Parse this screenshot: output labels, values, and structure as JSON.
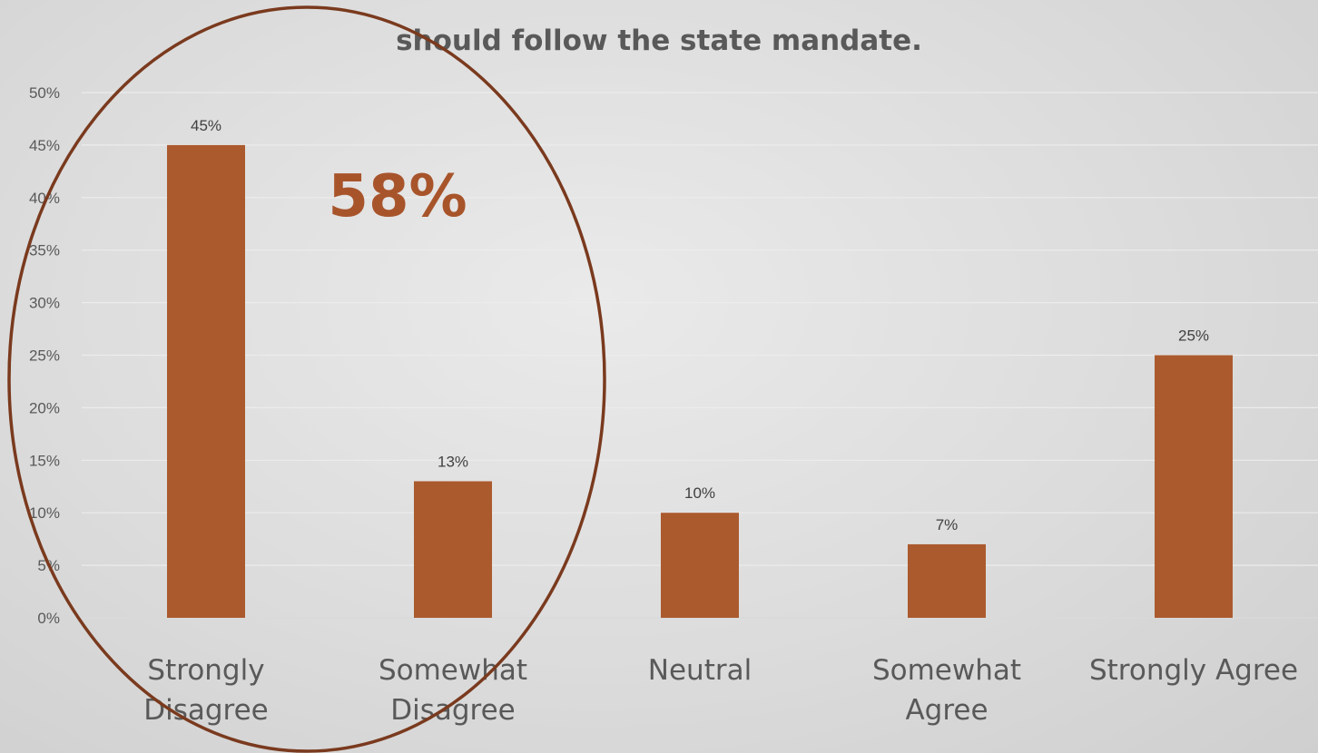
{
  "colors": {
    "bar": "#ab5a2e",
    "callout_text": "#a8542b",
    "ellipse": "#7a3a1e",
    "grid": "#ececec",
    "axis_text": "#595959"
  },
  "chart_data": {
    "type": "bar",
    "title_lines": [
      "should follow the state mandate."
    ],
    "categories": [
      [
        "Strongly",
        "Disagree"
      ],
      [
        "Somewhat",
        "Disagree"
      ],
      [
        "Neutral"
      ],
      [
        "Somewhat",
        "Agree"
      ],
      [
        "Strongly Agree"
      ]
    ],
    "values": [
      45,
      13,
      10,
      7,
      25
    ],
    "data_labels": [
      "45%",
      "13%",
      "10%",
      "7%",
      "25%"
    ],
    "y_ticks": [
      "0%",
      "5%",
      "10%",
      "15%",
      "20%",
      "25%",
      "30%",
      "35%",
      "40%",
      "45%",
      "50%"
    ],
    "ylim": [
      0,
      50
    ],
    "grid": true,
    "legend": "none"
  },
  "annotation": {
    "callout_text": "58%",
    "encircles": [
      "Strongly Disagree",
      "Somewhat Disagree"
    ]
  }
}
